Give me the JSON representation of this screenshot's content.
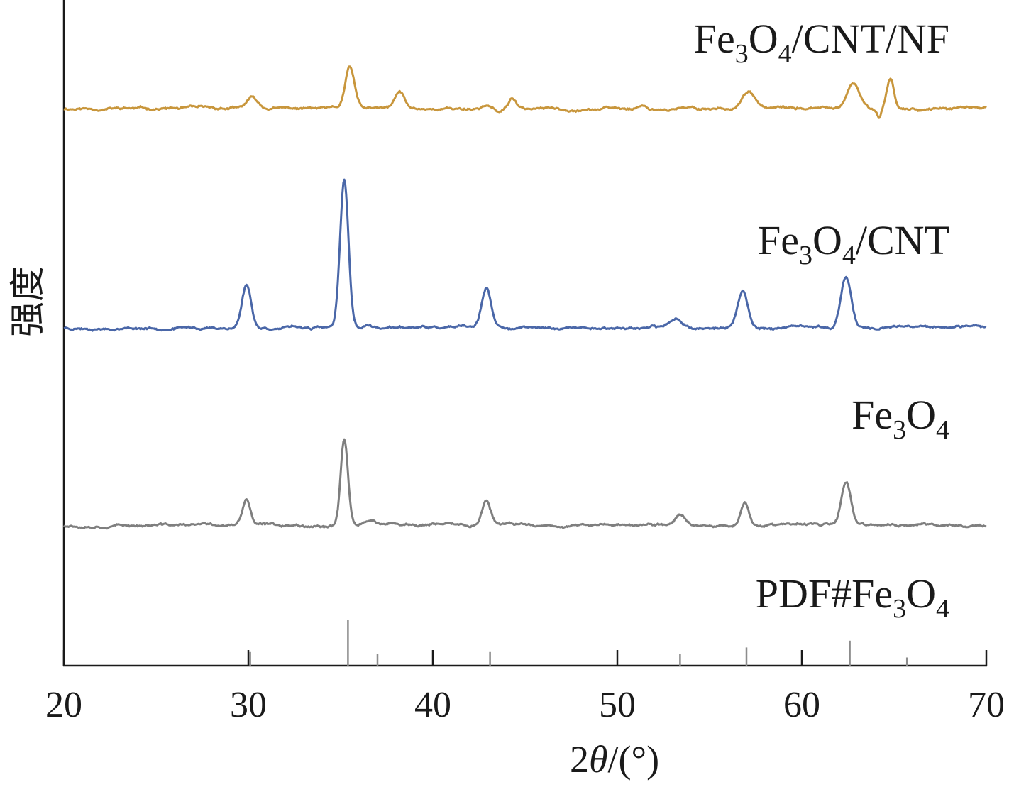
{
  "chart_data": {
    "type": "line",
    "xlabel": {
      "prefix": "2",
      "symbol": "θ",
      "suffix": "/(°)"
    },
    "ylabel": "强度",
    "xlim": [
      20,
      70
    ],
    "xticks": [
      20,
      30,
      40,
      50,
      60,
      70
    ],
    "xtick_labels": [
      "20",
      "30",
      "40",
      "50",
      "60",
      "70"
    ],
    "yticks_shown": false,
    "grid": false,
    "series": [
      {
        "name": "Fe3O4/CNT/NF",
        "name_parts": {
          "base": "Fe",
          "sub1": "3",
          "mid": "O",
          "sub2": "4",
          "tail": "/CNT/NF"
        },
        "color": "#c8963c",
        "baseline": 0.0,
        "peaks": [
          [
            30.2,
            0.18,
            0.4
          ],
          [
            35.5,
            0.7,
            0.35
          ],
          [
            38.2,
            0.28,
            0.35
          ],
          [
            42.9,
            0.07,
            0.3
          ],
          [
            44.3,
            0.18,
            0.25
          ],
          [
            51.3,
            0.06,
            0.3
          ],
          [
            57.1,
            0.28,
            0.5
          ],
          [
            62.8,
            0.42,
            0.45
          ],
          [
            64.8,
            0.52,
            0.28
          ]
        ],
        "dips": [
          [
            43.6,
            -0.08,
            0.2
          ],
          [
            64.2,
            -0.15,
            0.15
          ]
        ]
      },
      {
        "name": "Fe3O4/CNT",
        "name_parts": {
          "base": "Fe",
          "sub1": "3",
          "mid": "O",
          "sub2": "4",
          "tail": "/CNT"
        },
        "color": "#4a67a8",
        "baseline": 0.0,
        "peaks": [
          [
            29.9,
            0.78,
            0.35
          ],
          [
            35.2,
            2.65,
            0.32
          ],
          [
            36.5,
            0.05,
            0.3
          ],
          [
            42.9,
            0.7,
            0.35
          ],
          [
            53.2,
            0.17,
            0.5
          ],
          [
            56.8,
            0.68,
            0.38
          ],
          [
            62.4,
            0.9,
            0.4
          ]
        ],
        "dips": []
      },
      {
        "name": "Fe3O4",
        "name_parts": {
          "base": "Fe",
          "sub1": "3",
          "mid": "O",
          "sub2": "4",
          "tail": ""
        },
        "color": "#7f7f7f",
        "baseline": 0.0,
        "peaks": [
          [
            29.9,
            0.44,
            0.3
          ],
          [
            35.2,
            1.5,
            0.28
          ],
          [
            36.7,
            0.09,
            0.4
          ],
          [
            42.9,
            0.42,
            0.35
          ],
          [
            53.4,
            0.2,
            0.35
          ],
          [
            56.9,
            0.4,
            0.3
          ],
          [
            62.4,
            0.73,
            0.35
          ]
        ],
        "dips": []
      }
    ],
    "reference": {
      "name": "PDF#Fe3O4",
      "name_parts": {
        "prefix": "PDF#",
        "base": "Fe",
        "sub1": "3",
        "mid": "O",
        "sub2": "4"
      },
      "color": "#8c8c8c",
      "lines": [
        [
          30.1,
          0.3
        ],
        [
          35.4,
          1.0
        ],
        [
          37.0,
          0.25
        ],
        [
          43.1,
          0.3
        ],
        [
          53.4,
          0.25
        ],
        [
          57.0,
          0.4
        ],
        [
          62.6,
          0.55
        ],
        [
          65.7,
          0.18
        ]
      ]
    }
  }
}
